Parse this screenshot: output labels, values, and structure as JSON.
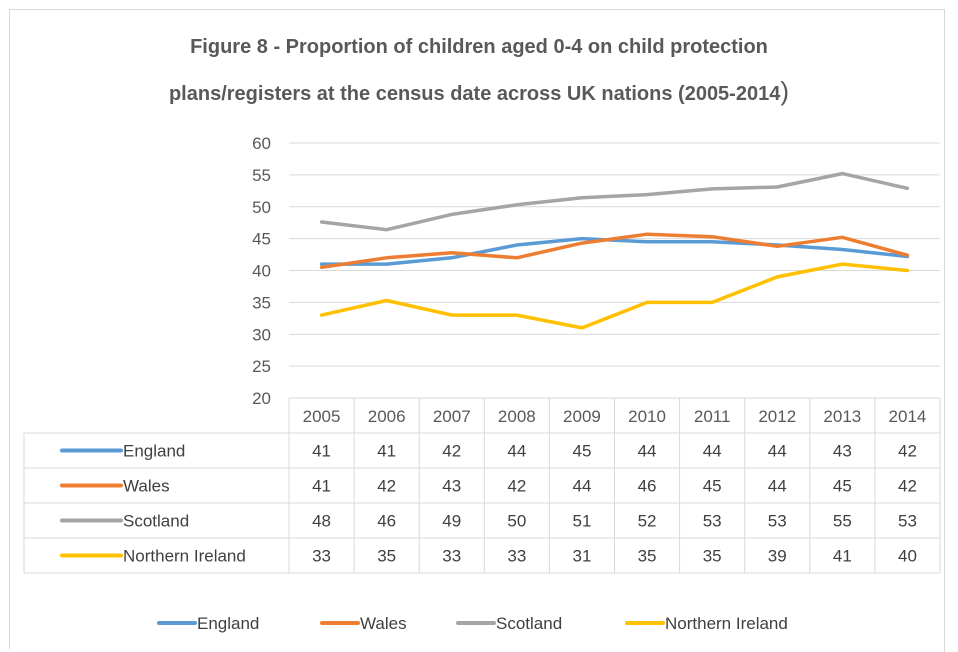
{
  "chart_data": {
    "type": "line",
    "title_line1": "Figure 8 - Proportion of children aged 0-4 on child protection",
    "title_line2": "plans/registers at the census date across UK nations (2005-2014",
    "title_paren": ")",
    "x": [
      "2005",
      "2006",
      "2007",
      "2008",
      "2009",
      "2010",
      "2011",
      "2012",
      "2013",
      "2014"
    ],
    "ylim": [
      20,
      60
    ],
    "yticks": [
      20,
      25,
      30,
      35,
      40,
      45,
      50,
      55,
      60
    ],
    "grid": true,
    "legend_position": "bottom",
    "data_table": true,
    "series": [
      {
        "name": "England",
        "color": "#5b9bd5",
        "values": [
          41,
          41,
          42,
          44,
          45,
          44.5,
          44.5,
          44,
          43.3,
          42.2
        ],
        "table_values": [
          "41",
          "41",
          "42",
          "44",
          "45",
          "44",
          "44",
          "44",
          "43",
          "42"
        ]
      },
      {
        "name": "Wales",
        "color": "#ed7d31",
        "values": [
          40.5,
          42,
          42.8,
          42,
          44.3,
          45.7,
          45.3,
          43.8,
          45.2,
          42.4
        ],
        "table_values": [
          "41",
          "42",
          "43",
          "42",
          "44",
          "46",
          "45",
          "44",
          "45",
          "42"
        ]
      },
      {
        "name": "Scotland",
        "color": "#a5a5a5",
        "values": [
          47.6,
          46.4,
          48.8,
          50.3,
          51.4,
          51.9,
          52.8,
          53.1,
          55.2,
          52.9
        ],
        "table_values": [
          "48",
          "46",
          "49",
          "50",
          "51",
          "52",
          "53",
          "53",
          "55",
          "53"
        ]
      },
      {
        "name": "Northern Ireland",
        "color": "#ffc000",
        "values": [
          33,
          35.3,
          33,
          33,
          31,
          35,
          35,
          39,
          41,
          40
        ],
        "table_values": [
          "33",
          "35",
          "33",
          "33",
          "31",
          "35",
          "35",
          "39",
          "41",
          "40"
        ]
      }
    ]
  }
}
